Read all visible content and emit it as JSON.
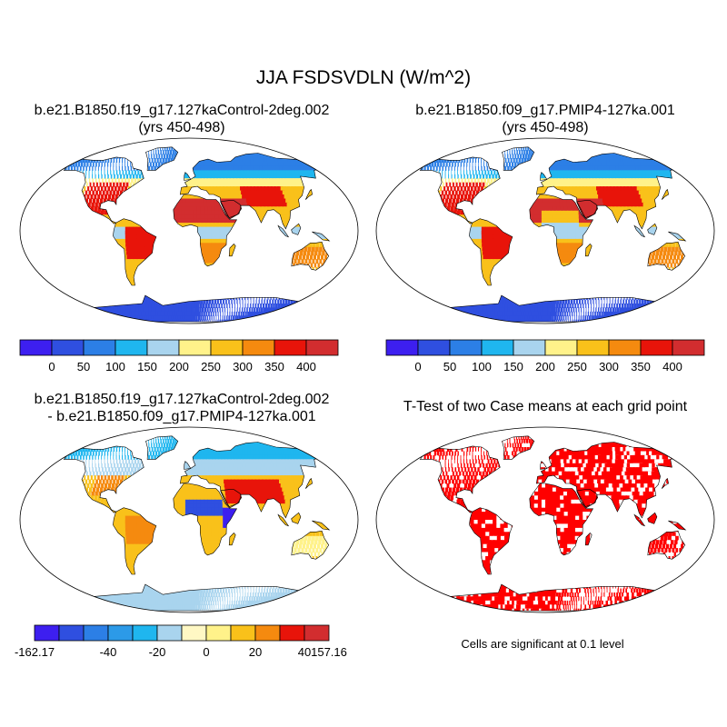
{
  "figure": {
    "title": "JJA FSDSVDLN (W/m^2)"
  },
  "panels": [
    {
      "id": "control",
      "title_line1": "b.e21.B1850.f19_g17.127kaControl-2deg.002",
      "title_line2": "(yrs 450-498)"
    },
    {
      "id": "pmip4",
      "title_line1": "b.e21.B1850.f09_g17.PMIP4-127ka.001",
      "title_line2": "(yrs 450-498)"
    },
    {
      "id": "difference",
      "title_line1": "b.e21.B1850.f19_g17.127kaControl-2deg.002",
      "title_line2": "- b.e21.B1850.f09_g17.PMIP4-127ka.001"
    },
    {
      "id": "ttest",
      "title_line1": "T-Test of two Case means at each grid point",
      "title_line2": ""
    }
  ],
  "colorbars": {
    "absolute": {
      "colors": [
        "#3d1ff0",
        "#2f4fe0",
        "#2c7fe6",
        "#1fb6ef",
        "#a9d4ee",
        "#fff28a",
        "#f9c11a",
        "#f58a0f",
        "#e8140a",
        "#d22d2f"
      ],
      "labels": [
        "0",
        "50",
        "100",
        "150",
        "200",
        "250",
        "300",
        "350",
        "400"
      ]
    },
    "difference": {
      "colors": [
        "#3d1ff0",
        "#2f4fe0",
        "#2c7fe6",
        "#2c9ae8",
        "#1fb6ef",
        "#a9d4ee",
        "#fff8c4",
        "#fff28a",
        "#f9c11a",
        "#f58a0f",
        "#e8140a",
        "#d22d2f"
      ],
      "labels": [
        {
          "text": "-162.17",
          "edge": 0
        },
        {
          "text": "-40",
          "edge": 3
        },
        {
          "text": "-20",
          "edge": 5
        },
        {
          "text": "0",
          "edge": 7
        },
        {
          "text": "20",
          "edge": 9
        },
        {
          "text": "40",
          "edge": 11
        },
        {
          "text": "157.16",
          "edge": 12
        }
      ]
    }
  },
  "significance_note": "Cells are significant at 0.1 level",
  "map_style": {
    "projection": "Robinson",
    "season": "JJA",
    "ttest_fill": "#ff0000",
    "coastline": "#000000"
  }
}
